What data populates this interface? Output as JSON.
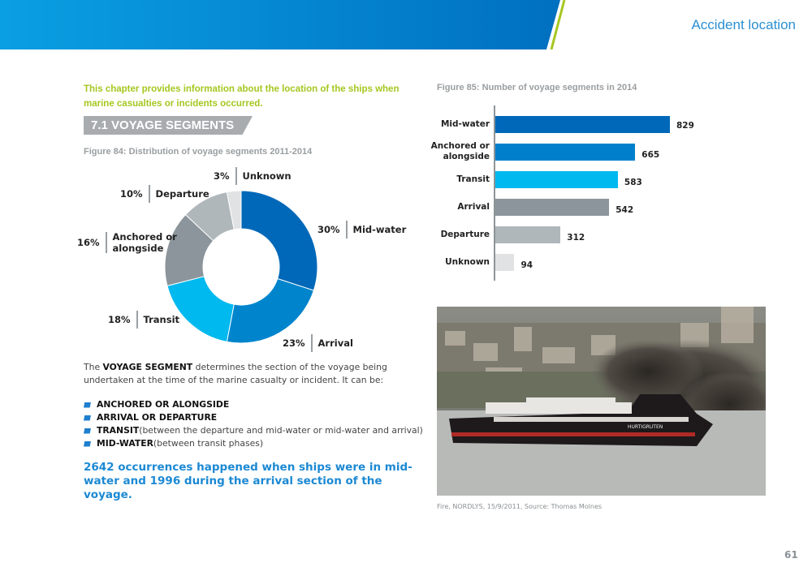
{
  "header": {
    "running_title": "Accident location",
    "band_colors": [
      "#0a9fe2",
      "#0070c0"
    ],
    "accent_line": "#a6c720"
  },
  "intro": "This chapter provides information about the location of the ships when marine casualties or incidents occurred.",
  "section_heading": "7.1 VOYAGE SEGMENTS",
  "figure84": {
    "caption": "Figure 84: Distribution of voyage segments 2011-2014"
  },
  "figure85": {
    "caption": "Figure 85: Number of voyage segments in 2014"
  },
  "chart_data": [
    {
      "type": "pie",
      "variant": "donut",
      "title": "Figure 84: Distribution of voyage segments 2011-2014",
      "slices": [
        {
          "label": "Mid-water",
          "pct_label": "30%",
          "value": 30,
          "color": "#0068b8"
        },
        {
          "label": "Arrival",
          "pct_label": "23%",
          "value": 23,
          "color": "#0085cd"
        },
        {
          "label": "Transit",
          "pct_label": "18%",
          "value": 18,
          "color": "#00b9ef"
        },
        {
          "label": "Anchored or alongside",
          "label_lines": [
            "Anchored or",
            "alongside"
          ],
          "pct_label": "16%",
          "value": 16,
          "color": "#8b959b"
        },
        {
          "label": "Departure",
          "pct_label": "10%",
          "value": 10,
          "color": "#b0b7bb"
        },
        {
          "label": "Unknown",
          "pct_label": "3%",
          "value": 3,
          "color": "#e1e2e3"
        }
      ]
    },
    {
      "type": "bar",
      "orientation": "horizontal",
      "title": "Figure 85: Number of voyage segments in 2014",
      "categories": [
        "Mid-water",
        "Anchored or alongside",
        "Transit",
        "Arrival",
        "Departure",
        "Unknown"
      ],
      "category_lines": [
        [
          "Mid-water"
        ],
        [
          "Anchored or",
          "alongside"
        ],
        [
          "Transit"
        ],
        [
          "Arrival"
        ],
        [
          "Departure"
        ],
        [
          "Unknown"
        ]
      ],
      "values": [
        829,
        665,
        583,
        542,
        312,
        94
      ],
      "colors": [
        "#0068b8",
        "#0080cc",
        "#00b9ef",
        "#8b959b",
        "#b0b7bb",
        "#e1e2e3"
      ],
      "xlim": [
        0,
        829
      ],
      "data_labels": true,
      "grid": false
    }
  ],
  "body": {
    "pre": "The ",
    "bold": "VOYAGE SEGMENT",
    "post": " determines the section of the voyage being undertaken at the time of the marine casualty or incident. It can be:"
  },
  "bullets": [
    {
      "bold": "ANCHORED OR ALONGSIDE",
      "rest": ""
    },
    {
      "bold": "ARRIVAL OR DEPARTURE",
      "rest": ""
    },
    {
      "bold": "TRANSIT",
      "rest": " (between the departure and mid-water or mid-water and arrival)"
    },
    {
      "bold": "MID-WATER",
      "rest": " (between transit phases)"
    }
  ],
  "highlight": "2642 occurrences happened when ships were in mid-water and 1996 during the arrival section of the voyage.",
  "photo": {
    "caption": "Fire, NORDLYS, 15/9/2011, Source: Thomas Molnes",
    "ship_name": "HURTIGRUTEN"
  },
  "page_number": "61"
}
